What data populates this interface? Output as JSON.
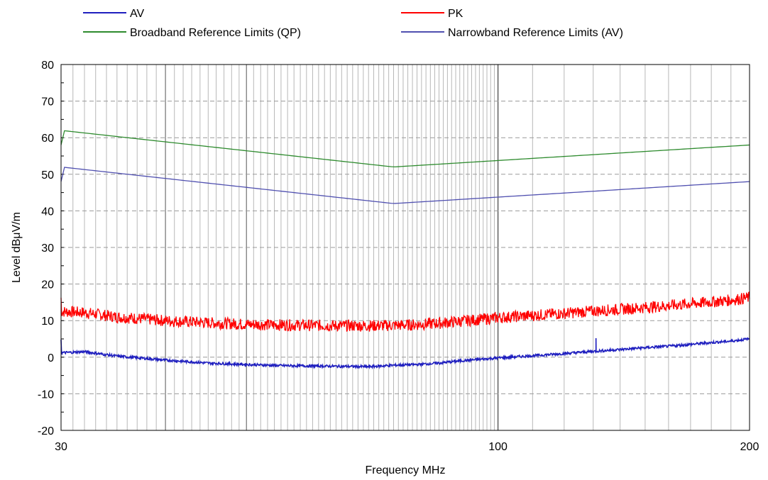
{
  "chart_data": {
    "type": "line",
    "title": "",
    "xlabel": "Frequency MHz",
    "ylabel": "Level dBμV/m",
    "x_scale": "log",
    "xlim": [
      30,
      200
    ],
    "ylim": [
      -20,
      80
    ],
    "x_ticks": [
      30,
      100,
      200
    ],
    "x_tick_labels": [
      "30",
      "100",
      "200"
    ],
    "y_ticks": [
      -20,
      -10,
      0,
      10,
      20,
      30,
      40,
      50,
      60,
      70,
      80
    ],
    "y_tick_labels": [
      "-20",
      "-10",
      "0",
      "10",
      "20",
      "30",
      "40",
      "50",
      "60",
      "70",
      "80"
    ],
    "grid": true,
    "legend_position": "top",
    "series": [
      {
        "name": "AV",
        "color": "#1f1fbf",
        "x": [
          30,
          32,
          35,
          40,
          45,
          50,
          55,
          60,
          65,
          70,
          75,
          80,
          85,
          90,
          95,
          100,
          110,
          120,
          130,
          140,
          150,
          160,
          170,
          180,
          190,
          200
        ],
        "y": [
          1.2,
          1.5,
          0.3,
          -0.8,
          -1.6,
          -2.0,
          -2.3,
          -2.4,
          -2.5,
          -2.6,
          -2.2,
          -2.0,
          -1.6,
          -1.0,
          -0.6,
          -0.2,
          0.4,
          1.0,
          1.6,
          2.1,
          2.6,
          3.0,
          3.5,
          4.0,
          4.4,
          5.0
        ],
        "spike_x": 131,
        "spike_y": 5.2,
        "noise": 0.35
      },
      {
        "name": "PK",
        "color": "#ff0000",
        "x": [
          30,
          32,
          35,
          40,
          45,
          50,
          55,
          60,
          65,
          70,
          75,
          80,
          85,
          90,
          95,
          100,
          110,
          120,
          130,
          140,
          150,
          160,
          170,
          180,
          190,
          200
        ],
        "y": [
          12.5,
          12.2,
          11.0,
          10.0,
          9.4,
          9.0,
          8.8,
          8.7,
          8.6,
          8.6,
          8.7,
          8.9,
          9.3,
          9.8,
          10.3,
          10.8,
          11.4,
          12.0,
          12.6,
          13.1,
          13.6,
          14.1,
          14.6,
          15.1,
          15.6,
          16.3
        ],
        "noise": 1.6
      },
      {
        "name": "Broadband Reference Limits (QP)",
        "color": "#2e8b2e",
        "x": [
          30,
          75,
          200
        ],
        "y": [
          62,
          52,
          58
        ]
      },
      {
        "name": "Narrowband Reference Limits (AV)",
        "color": "#5050b0",
        "x": [
          30,
          75,
          200
        ],
        "y": [
          52,
          42,
          48
        ]
      }
    ]
  }
}
